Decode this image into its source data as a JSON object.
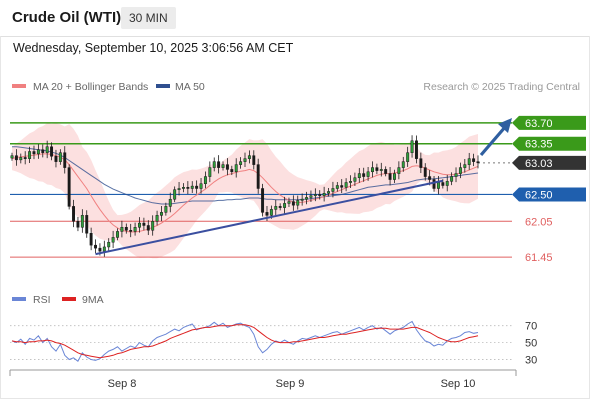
{
  "header": {
    "title": "Crude Oil (WTI)",
    "timeframe": "30 MIN",
    "datetime": "Wednesday, September 10, 2025 3:06:56 AM CET"
  },
  "legend": {
    "ma20": "MA 20 + Bollinger Bands",
    "ma50": "MA 50",
    "research": "Research © 2025 Trading Central",
    "rsi": "RSI",
    "rsi_ma": "9MA"
  },
  "colors": {
    "ma20": "#f08080",
    "ma50": "#2f4f8f",
    "bollinger_fill": "#fbd5d5",
    "resistance": "#3a9a1a",
    "pivot": "#1f5fae",
    "support": "#e06060",
    "current": "#333333",
    "arrow": "#2f5fa0",
    "trendline": "#3b4fa0",
    "rsi": "#6a86d6",
    "rsi_ma": "#dd2222"
  },
  "chart_data": [
    {
      "type": "candlestick",
      "x_labels": [
        "Sep 8",
        "Sep 9",
        "Sep 10"
      ],
      "ylim": [
        61.15,
        64.1
      ],
      "levels": [
        {
          "label": "63.70",
          "value": 63.7,
          "kind": "resistance"
        },
        {
          "label": "63.35",
          "value": 63.35,
          "kind": "resistance"
        },
        {
          "label": "63.03",
          "value": 63.03,
          "kind": "current"
        },
        {
          "label": "62.50",
          "value": 62.5,
          "kind": "pivot"
        },
        {
          "label": "62.05",
          "value": 62.05,
          "kind": "support"
        },
        {
          "label": "61.45",
          "value": 61.45,
          "kind": "support"
        }
      ],
      "closes": [
        63.15,
        63.08,
        63.12,
        63.1,
        63.22,
        63.18,
        63.25,
        63.2,
        63.3,
        63.14,
        63.05,
        63.2,
        62.95,
        62.3,
        62.05,
        61.95,
        62.15,
        61.85,
        61.65,
        61.6,
        61.55,
        61.62,
        61.7,
        61.78,
        61.88,
        61.95,
        61.9,
        61.88,
        61.95,
        62.02,
        61.98,
        61.9,
        62.05,
        62.15,
        62.2,
        62.3,
        62.42,
        62.58,
        62.6,
        62.62,
        62.6,
        62.64,
        62.6,
        62.68,
        62.8,
        62.95,
        63.05,
        62.95,
        63.0,
        62.92,
        62.88,
        63.0,
        63.05,
        63.1,
        63.15,
        63.0,
        62.6,
        62.2,
        62.15,
        62.25,
        62.3,
        62.28,
        62.35,
        62.38,
        62.32,
        62.4,
        62.42,
        62.45,
        62.48,
        62.5,
        62.48,
        62.52,
        62.55,
        62.6,
        62.65,
        62.62,
        62.7,
        62.72,
        62.78,
        62.85,
        62.8,
        62.88,
        62.95,
        62.9,
        62.92,
        62.85,
        62.75,
        62.85,
        62.95,
        63.05,
        63.2,
        63.4,
        63.1,
        62.95,
        62.8,
        62.75,
        62.6,
        62.7,
        62.65,
        62.72,
        62.8,
        62.85,
        62.95,
        63.0,
        63.1,
        63.05,
        63.03
      ],
      "ma20": [
        63.1,
        63.12,
        63.13,
        63.14,
        63.15,
        63.16,
        63.17,
        63.18,
        63.18,
        63.17,
        63.15,
        63.13,
        63.08,
        63.0,
        62.9,
        62.8,
        62.7,
        62.6,
        62.48,
        62.36,
        62.25,
        62.15,
        62.06,
        61.99,
        61.94,
        61.9,
        61.88,
        61.87,
        61.87,
        61.88,
        61.9,
        61.92,
        61.95,
        61.98,
        62.02,
        62.07,
        62.12,
        62.18,
        62.25,
        62.32,
        62.38,
        62.44,
        62.49,
        62.54,
        62.59,
        62.65,
        62.71,
        62.76,
        62.8,
        62.83,
        62.85,
        62.87,
        62.89,
        62.9,
        62.92,
        62.9,
        62.85,
        62.78,
        62.7,
        62.62,
        62.55,
        62.49,
        62.44,
        62.4,
        62.37,
        62.36,
        62.37,
        62.38,
        62.4,
        62.42,
        62.44,
        62.46,
        62.49,
        62.52,
        62.55,
        62.58,
        62.61,
        62.64,
        62.67,
        62.7,
        62.73,
        62.76,
        62.79,
        62.82,
        62.84,
        62.85,
        62.85,
        62.86,
        62.88,
        62.9,
        62.93,
        62.97,
        62.98,
        62.97,
        62.94,
        62.91,
        62.88,
        62.86,
        62.84,
        62.83,
        62.83,
        62.84,
        62.86,
        62.88,
        62.91,
        62.94,
        62.97
      ],
      "ma50": [
        63.3,
        63.3,
        63.29,
        63.28,
        63.27,
        63.26,
        63.25,
        63.24,
        63.23,
        63.21,
        63.19,
        63.16,
        63.12,
        63.07,
        63.02,
        62.97,
        62.92,
        62.87,
        62.82,
        62.77,
        62.72,
        62.67,
        62.63,
        62.59,
        62.56,
        62.53,
        62.5,
        62.47,
        62.44,
        62.42,
        62.4,
        62.38,
        62.36,
        62.35,
        62.34,
        62.34,
        62.34,
        62.35,
        62.36,
        62.37,
        62.38,
        62.39,
        62.39,
        62.39,
        62.39,
        62.39,
        62.39,
        62.4,
        62.4,
        62.41,
        62.41,
        62.42,
        62.42,
        62.43,
        62.44,
        62.44,
        62.44,
        62.43,
        62.42,
        62.42,
        62.41,
        62.41,
        62.41,
        62.41,
        62.41,
        62.41,
        62.42,
        62.42,
        62.43,
        62.44,
        62.45,
        62.46,
        62.47,
        62.48,
        62.49,
        62.5,
        62.52,
        62.54,
        62.56,
        62.58,
        62.6,
        62.62,
        62.63,
        62.64,
        62.65,
        62.66,
        62.66,
        62.67,
        62.68,
        62.69,
        62.7,
        62.72,
        62.74,
        62.75,
        62.76,
        62.76,
        62.76,
        62.77,
        62.78,
        62.79,
        62.8,
        62.81,
        62.82,
        62.83,
        62.84,
        62.85,
        62.86
      ]
    },
    {
      "type": "line",
      "name": "RSI",
      "yticks": [
        70,
        50,
        30
      ],
      "ylim": [
        20,
        85
      ],
      "rsi": [
        52,
        50,
        54,
        48,
        55,
        53,
        58,
        50,
        55,
        45,
        40,
        48,
        35,
        30,
        32,
        28,
        38,
        33,
        30,
        29,
        31,
        36,
        40,
        42,
        45,
        40,
        43,
        46,
        44,
        50,
        47,
        45,
        52,
        56,
        58,
        60,
        63,
        66,
        64,
        68,
        70,
        72,
        65,
        67,
        68,
        70,
        74,
        70,
        73,
        68,
        70,
        72,
        73,
        70,
        68,
        60,
        45,
        38,
        42,
        48,
        52,
        50,
        53,
        50,
        48,
        52,
        55,
        54,
        56,
        58,
        56,
        58,
        60,
        62,
        63,
        60,
        62,
        64,
        66,
        68,
        65,
        68,
        70,
        66,
        68,
        64,
        60,
        64,
        66,
        68,
        72,
        75,
        65,
        58,
        52,
        50,
        46,
        48,
        47,
        52,
        55,
        56,
        58,
        62,
        63,
        61,
        62
      ],
      "ma9": [
        52,
        51,
        51,
        50,
        51,
        51,
        52,
        52,
        53,
        52,
        50,
        49,
        47,
        44,
        41,
        38,
        36,
        35,
        34,
        33,
        32,
        33,
        34,
        35,
        37,
        38,
        40,
        42,
        43,
        44,
        45,
        45,
        46,
        48,
        50,
        52,
        55,
        57,
        59,
        61,
        63,
        65,
        66,
        67,
        68,
        68,
        69,
        70,
        70,
        70,
        70,
        71,
        71,
        71,
        70,
        68,
        64,
        60,
        56,
        53,
        51,
        50,
        50,
        50,
        51,
        51,
        52,
        53,
        54,
        55,
        56,
        56,
        57,
        58,
        59,
        60,
        60,
        61,
        62,
        63,
        64,
        65,
        66,
        67,
        67,
        67,
        66,
        66,
        66,
        66,
        67,
        68,
        68,
        66,
        64,
        62,
        59,
        56,
        54,
        52,
        51,
        51,
        52,
        54,
        56,
        57,
        58
      ]
    }
  ]
}
